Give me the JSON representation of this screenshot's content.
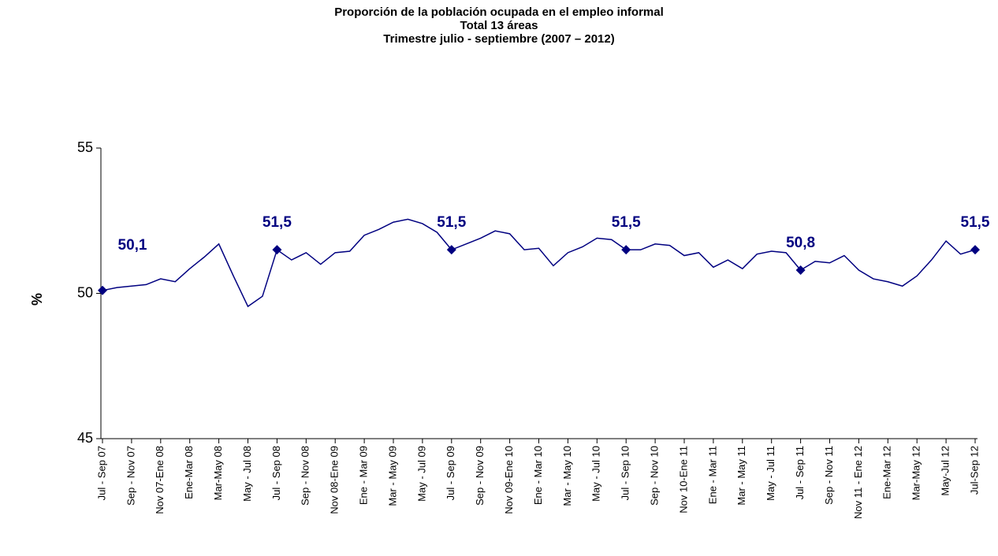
{
  "chart_data": {
    "type": "line",
    "title": [
      "Proporción de la población ocupada en el empleo informal",
      "Total 13 áreas",
      "Trimestre julio - septiembre (2007 – 2012)"
    ],
    "ylabel": "%",
    "categories": [
      "Jul - Sep 07",
      null,
      "Sep - Nov 07",
      null,
      "Nov 07-Ene 08",
      null,
      "Ene-Mar 08",
      null,
      "Mar-May 08",
      null,
      "May - Jul 08",
      null,
      "Jul - Sep 08",
      null,
      "Sep - Nov 08",
      null,
      "Nov 08-Ene 09",
      null,
      "Ene - Mar 09",
      null,
      "Mar - May 09",
      null,
      "May - Jul 09",
      null,
      "Jul - Sep 09",
      null,
      "Sep - Nov 09",
      null,
      "Nov 09-Ene 10",
      null,
      "Ene - Mar 10",
      null,
      "Mar - May 10",
      null,
      "May - Jul 10",
      null,
      "Jul - Sep 10",
      null,
      "Sep - Nov 10",
      null,
      "Nov 10-Ene 11",
      null,
      "Ene - Mar 11",
      null,
      "Mar - May 11",
      null,
      "May - Jul 11",
      null,
      "Jul - Sep 11",
      null,
      "Sep - Nov 11",
      null,
      "Nov 11 - Ene 12",
      null,
      "Ene-Mar 12",
      null,
      "Mar-May 12",
      null,
      "May-Jul 12",
      null,
      "Jul-Sep 12"
    ],
    "series": [
      {
        "name": "Total 13 áreas",
        "color": "#000080",
        "values": [
          50.1,
          50.2,
          50.25,
          50.3,
          50.5,
          50.4,
          50.85,
          51.25,
          51.7,
          50.6,
          49.55,
          49.9,
          51.5,
          51.15,
          51.4,
          51.0,
          51.4,
          51.45,
          52.0,
          52.2,
          52.45,
          52.55,
          52.4,
          52.1,
          51.5,
          51.7,
          51.9,
          52.15,
          52.05,
          51.5,
          51.55,
          50.95,
          51.4,
          51.6,
          51.9,
          51.85,
          51.5,
          51.5,
          51.7,
          51.65,
          51.3,
          51.4,
          50.9,
          51.15,
          50.85,
          51.35,
          51.45,
          51.4,
          50.8,
          51.1,
          51.05,
          51.3,
          50.8,
          50.5,
          50.4,
          50.25,
          50.6,
          51.15,
          51.8,
          51.35,
          51.5
        ],
        "value_labels": [
          "50,1",
          null,
          null,
          null,
          null,
          null,
          null,
          null,
          null,
          null,
          null,
          null,
          "51,5",
          null,
          null,
          null,
          null,
          null,
          null,
          null,
          null,
          null,
          null,
          null,
          "51,5",
          null,
          null,
          null,
          null,
          null,
          null,
          null,
          null,
          null,
          null,
          null,
          "51,5",
          null,
          null,
          null,
          null,
          null,
          null,
          null,
          null,
          null,
          null,
          null,
          "50,8",
          null,
          null,
          null,
          null,
          null,
          null,
          null,
          null,
          null,
          null,
          null,
          "51,5"
        ]
      }
    ],
    "ylim": [
      45,
      55
    ],
    "yticks": [
      45,
      50,
      55
    ],
    "grid": false
  }
}
